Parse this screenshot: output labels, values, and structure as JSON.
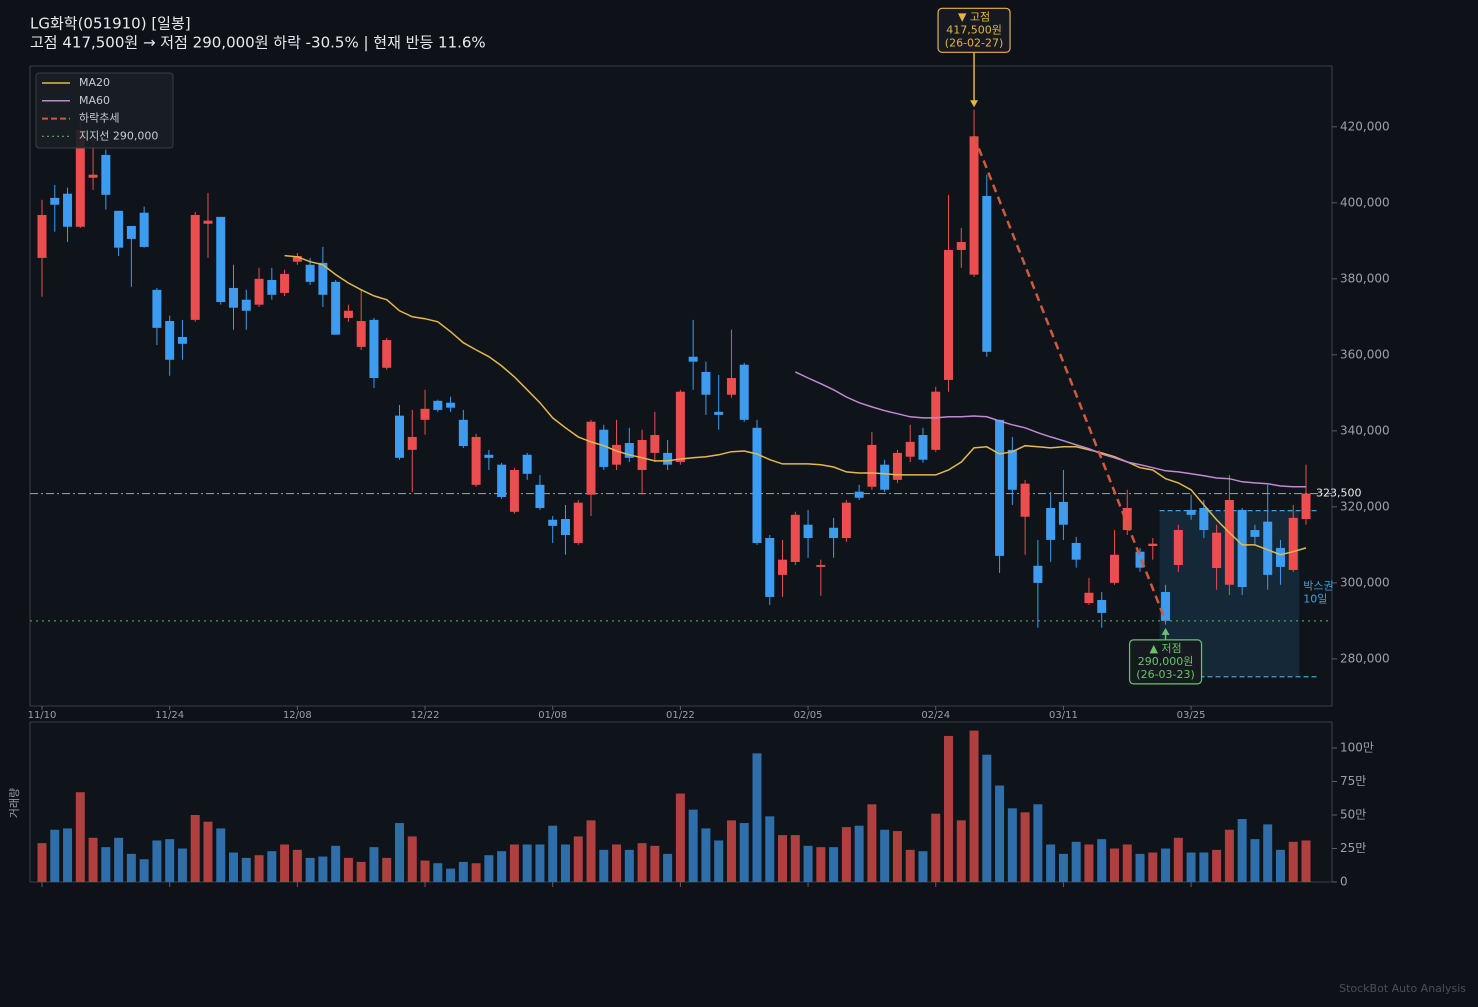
{
  "header": {
    "title": "LG화학(051910)  [일봉]",
    "subtitle": "고점 417,500원 → 저점 290,000원  하락 -30.5%  |  현재 반등 11.6%"
  },
  "footer": "StockBot Auto Analysis",
  "chart_data": [
    {
      "type": "candlestick",
      "categories": [
        "11/10",
        null,
        null,
        null,
        null,
        null,
        null,
        null,
        null,
        null,
        "11/24",
        null,
        null,
        null,
        null,
        null,
        null,
        null,
        null,
        null,
        "12/08",
        null,
        null,
        null,
        null,
        null,
        null,
        null,
        null,
        null,
        "12/22",
        null,
        null,
        null,
        null,
        null,
        null,
        null,
        null,
        null,
        "01/08",
        null,
        null,
        null,
        null,
        null,
        null,
        null,
        null,
        null,
        "01/22",
        null,
        null,
        null,
        null,
        null,
        null,
        null,
        null,
        null,
        "02/05",
        null,
        null,
        null,
        null,
        null,
        null,
        null,
        null,
        null,
        "02/24",
        null,
        null,
        null,
        null,
        null,
        null,
        null,
        null,
        null,
        "03/11",
        null,
        null,
        null,
        null,
        null,
        null,
        null,
        null,
        null,
        "03/25",
        null,
        null,
        null,
        null,
        null,
        null,
        null,
        null,
        null
      ],
      "open": [
        385500,
        401300,
        402400,
        393700,
        406600,
        412600,
        397900,
        393900,
        397400,
        377100,
        368900,
        364700,
        369200,
        394500,
        396300,
        377600,
        374500,
        373200,
        379700,
        376300,
        384500,
        383700,
        384200,
        379200,
        369700,
        362100,
        369200,
        356600,
        344000,
        335000,
        342900,
        347900,
        347400,
        342900,
        325800,
        333700,
        331100,
        318700,
        333700,
        325800,
        316600,
        316800,
        310500,
        323200,
        340300,
        331100,
        336800,
        329700,
        334200,
        334200,
        331800,
        359500,
        355500,
        345000,
        349500,
        357400,
        340800,
        311800,
        302100,
        305500,
        315300,
        304200,
        314500,
        311800,
        324000,
        325300,
        331100,
        327100,
        333200,
        338900,
        335000,
        353400,
        387600,
        381100,
        401800,
        342900,
        335000,
        317400,
        304500,
        319700,
        321300,
        310500,
        294700,
        295500,
        300000,
        313900,
        308200,
        309700,
        297600,
        304700,
        319200,
        319700,
        303900,
        299500,
        319200,
        313900,
        316100,
        309200,
        303400,
        316800
      ],
      "high": [
        400800,
        404700,
        404000,
        421800,
        416600,
        414000,
        397900,
        393900,
        399000,
        377600,
        370300,
        369200,
        397600,
        402600,
        396300,
        383700,
        377100,
        382900,
        382900,
        382400,
        386800,
        385500,
        388400,
        379700,
        373200,
        377100,
        369700,
        364500,
        346800,
        345500,
        350800,
        348200,
        349000,
        345500,
        339200,
        335000,
        331600,
        330300,
        334200,
        328400,
        317600,
        320500,
        321800,
        342900,
        341600,
        342900,
        340800,
        340300,
        345000,
        337600,
        350800,
        369200,
        358200,
        354700,
        366600,
        357900,
        342900,
        312600,
        311300,
        318700,
        319200,
        306100,
        317100,
        321800,
        325800,
        339700,
        332400,
        335000,
        341600,
        340800,
        351600,
        402100,
        393400,
        424500,
        407400,
        342900,
        338400,
        327100,
        311300,
        323900,
        329700,
        312100,
        301300,
        297600,
        313900,
        324500,
        309200,
        311800,
        299500,
        315300,
        323200,
        321800,
        315300,
        328400,
        319700,
        315300,
        325800,
        311300,
        320500,
        331100
      ],
      "low": [
        375300,
        392400,
        389700,
        393400,
        403400,
        398200,
        386000,
        377900,
        388200,
        362600,
        354500,
        358700,
        368700,
        385500,
        373200,
        366600,
        366600,
        372600,
        374500,
        375500,
        383700,
        378400,
        372600,
        365300,
        368700,
        361300,
        351300,
        356100,
        332400,
        323900,
        339000,
        345000,
        345000,
        335500,
        325300,
        329700,
        322100,
        318200,
        327100,
        319200,
        310500,
        307400,
        310000,
        317600,
        329700,
        329700,
        331800,
        323200,
        331800,
        329700,
        331100,
        350800,
        344200,
        340300,
        348700,
        342400,
        310000,
        294200,
        296300,
        304700,
        306600,
        296600,
        306600,
        310800,
        321800,
        324500,
        323900,
        326300,
        331800,
        331600,
        334500,
        350300,
        382900,
        380500,
        359500,
        302600,
        320500,
        307400,
        288200,
        305500,
        311300,
        304000,
        294200,
        288200,
        299500,
        312600,
        302900,
        306100,
        289000,
        302900,
        316600,
        311800,
        298200,
        296800,
        296800,
        310000,
        298200,
        299500,
        302900,
        315300
      ],
      "close": [
        396800,
        399500,
        393700,
        419200,
        407400,
        402100,
        388200,
        390500,
        388400,
        367100,
        358700,
        362900,
        396800,
        395300,
        373900,
        372400,
        371600,
        380000,
        375800,
        381300,
        386000,
        379200,
        375800,
        365300,
        371600,
        368900,
        353900,
        363900,
        332900,
        338400,
        345800,
        345500,
        346100,
        336000,
        338400,
        332900,
        322600,
        329700,
        328700,
        319700,
        315000,
        312600,
        321100,
        342400,
        330500,
        336300,
        332900,
        337600,
        338900,
        331100,
        350300,
        358200,
        349500,
        344200,
        353900,
        342900,
        310500,
        296300,
        306100,
        317900,
        311800,
        304700,
        311800,
        321100,
        322400,
        336300,
        324500,
        334200,
        337100,
        332400,
        350300,
        387600,
        389700,
        417500,
        360800,
        307100,
        324500,
        326100,
        300000,
        311300,
        315300,
        306100,
        297400,
        292100,
        307400,
        319700,
        304000,
        310300,
        290000,
        313900,
        317900,
        313900,
        313200,
        321800,
        298900,
        312100,
        302100,
        304200,
        317100,
        323500
      ],
      "up_color": "#ec4e50",
      "down_color": "#3d9cf0",
      "ylim": [
        267600,
        436000
      ],
      "yticks": [
        {
          "value": 280000,
          "label": "280,000"
        },
        {
          "value": 300000,
          "label": "300,000"
        },
        {
          "value": 320000,
          "label": "320,000"
        },
        {
          "value": 340000,
          "label": "340,000"
        },
        {
          "value": 360000,
          "label": "360,000"
        },
        {
          "value": 380000,
          "label": "380,000"
        },
        {
          "value": 400000,
          "label": "400,000"
        },
        {
          "value": 420000,
          "label": "420,000"
        }
      ],
      "grid": false,
      "legend": "upper left",
      "series": [
        {
          "name": "MA20",
          "color": "#e4b84c",
          "values": [
            null,
            null,
            null,
            null,
            null,
            null,
            null,
            null,
            null,
            null,
            null,
            null,
            null,
            null,
            null,
            null,
            null,
            null,
            null,
            386100,
            385800,
            384500,
            383700,
            381100,
            378900,
            377100,
            375500,
            374500,
            371600,
            370000,
            369500,
            368700,
            366100,
            363200,
            361300,
            359500,
            357100,
            354200,
            350800,
            347400,
            343400,
            340800,
            338400,
            337100,
            336100,
            334700,
            333700,
            332900,
            332100,
            332100,
            332600,
            332900,
            333200,
            333700,
            334500,
            334700,
            333900,
            332400,
            331300,
            331300,
            331300,
            331100,
            330500,
            329200,
            328900,
            328900,
            328700,
            328400,
            328400,
            328400,
            328400,
            329700,
            331800,
            335500,
            335800,
            333900,
            334500,
            336100,
            335800,
            335500,
            335800,
            335800,
            335000,
            334200,
            333200,
            331800,
            330300,
            329700,
            327400,
            326300,
            324500,
            320500,
            316600,
            313200,
            310000,
            310000,
            308700,
            307400,
            308200,
            309200
          ]
        },
        {
          "name": "MA60",
          "color": "#c08ad2",
          "values": [
            null,
            null,
            null,
            null,
            null,
            null,
            null,
            null,
            null,
            null,
            null,
            null,
            null,
            null,
            null,
            null,
            null,
            null,
            null,
            null,
            null,
            null,
            null,
            null,
            null,
            null,
            null,
            null,
            null,
            null,
            null,
            null,
            null,
            null,
            null,
            null,
            null,
            null,
            null,
            null,
            null,
            null,
            null,
            null,
            null,
            null,
            null,
            null,
            null,
            null,
            null,
            null,
            null,
            null,
            null,
            null,
            null,
            null,
            null,
            355500,
            353900,
            352400,
            350800,
            348900,
            347400,
            346300,
            345300,
            344500,
            343700,
            343400,
            343400,
            343700,
            343700,
            343900,
            343700,
            342600,
            341600,
            340800,
            339500,
            338400,
            337400,
            336300,
            335300,
            333900,
            332900,
            331800,
            331100,
            330300,
            329500,
            329200,
            328700,
            328200,
            327600,
            327400,
            326600,
            326300,
            326100,
            325500,
            325300,
            325300
          ]
        }
      ],
      "trend": {
        "name": "하락추세",
        "color": "#cf5a3c",
        "x": [
          73,
          88
        ],
        "values": [
          417500,
          290000
        ]
      },
      "support": {
        "name": "지지선 290,000",
        "color": "#4e9a5e",
        "value": 290000
      },
      "current": {
        "value": 323500,
        "label": "323,500"
      },
      "annotations": [
        {
          "lines": [
            "▼ 고점",
            "417,500원",
            "(26-02-27)"
          ],
          "x": 73,
          "value": 417500,
          "position": "above",
          "color": "#e6b445"
        },
        {
          "lines": [
            "▲ 저점",
            "290,000원",
            "(26-03-23)"
          ],
          "x": 88,
          "value": 290000,
          "position": "below",
          "color": "#6cc26c"
        }
      ],
      "box": {
        "label": [
          "박스권",
          "10일"
        ],
        "xrange": [
          88,
          98
        ],
        "top": 319000,
        "bottom": 275300,
        "color": "#3fa0e0"
      }
    },
    {
      "type": "bar",
      "y_label": "거래량",
      "values": [
        290000,
        390000,
        400000,
        670000,
        330000,
        260000,
        330000,
        210000,
        170000,
        310000,
        320000,
        250000,
        500000,
        450000,
        400000,
        220000,
        180000,
        200000,
        230000,
        280000,
        240000,
        180000,
        190000,
        270000,
        180000,
        150000,
        260000,
        180000,
        440000,
        340000,
        160000,
        140000,
        100000,
        150000,
        140000,
        200000,
        230000,
        280000,
        280000,
        280000,
        420000,
        280000,
        340000,
        460000,
        240000,
        280000,
        240000,
        290000,
        270000,
        210000,
        660000,
        540000,
        400000,
        310000,
        460000,
        440000,
        960000,
        490000,
        350000,
        350000,
        270000,
        260000,
        260000,
        410000,
        420000,
        580000,
        390000,
        380000,
        240000,
        230000,
        510000,
        1090000,
        460000,
        1130000,
        950000,
        720000,
        550000,
        520000,
        580000,
        280000,
        210000,
        300000,
        280000,
        320000,
        250000,
        280000,
        210000,
        220000,
        250000,
        330000,
        220000,
        220000,
        240000,
        390000,
        470000,
        320000,
        430000,
        240000,
        300000,
        310000
      ],
      "up_color": "#b0403f",
      "down_color": "#2f6ea8",
      "ylim": [
        0,
        1194000
      ],
      "yticks": [
        0,
        {
          "value": 250000,
          "label": "25만"
        },
        {
          "value": 500000,
          "label": "50만"
        },
        {
          "value": 750000,
          "label": "75만"
        },
        {
          "value": 1000000,
          "label": "100만"
        }
      ]
    }
  ]
}
